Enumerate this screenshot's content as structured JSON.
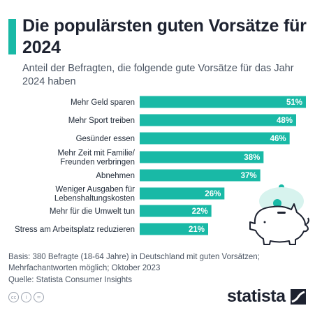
{
  "header": {
    "title": "Die populärsten guten Vorsätze für 2024",
    "subtitle": "Anteil der Befragten, die folgende gute Vorsätze für das Jahr 2024 haben"
  },
  "chart_data": {
    "type": "bar",
    "orientation": "horizontal",
    "categories": [
      [
        "Mehr Geld sparen"
      ],
      [
        "Mehr Sport treiben"
      ],
      [
        "Gesünder essen"
      ],
      [
        "Mehr Zeit mit Familie/",
        "Freunden verbringen"
      ],
      [
        "Abnehmen"
      ],
      [
        "Weniger Ausgaben für",
        "Lebenshaltungskosten"
      ],
      [
        "Mehr für die Umwelt tun"
      ],
      [
        "Stress am Arbeitsplatz reduzieren"
      ]
    ],
    "values": [
      51,
      48,
      46,
      38,
      37,
      26,
      22,
      21
    ],
    "value_labels": [
      "51%",
      "48%",
      "46%",
      "38%",
      "37%",
      "26%",
      "22%",
      "21%"
    ],
    "xlim": [
      0,
      51
    ],
    "bar_color": "#19b9a6",
    "grid": false
  },
  "footer": {
    "basis_line1": "Basis: 380 Befragte (18-64 Jahre) in Deutschland mit guten Vorsätzen;",
    "basis_line2": "Mehrfachantworten möglich; Oktober 2023",
    "source": "Quelle: Statista Consumer Insights"
  },
  "license_icons": [
    "cc",
    "i",
    "="
  ],
  "brand": {
    "name": "statista",
    "color": "#1d2230"
  },
  "icons": {
    "illustration": "piggy-bank-icon"
  }
}
